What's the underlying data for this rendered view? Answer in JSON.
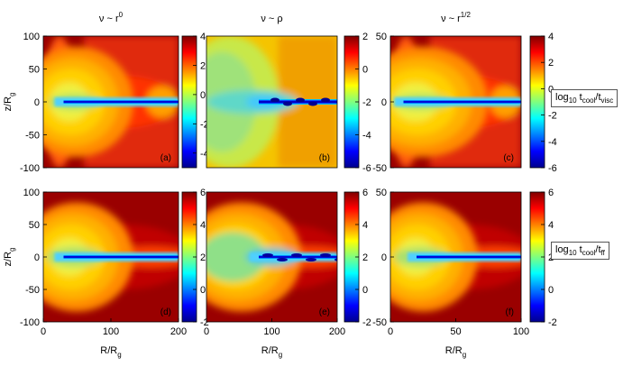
{
  "figure": {
    "legend_top_html": "log<sub>10</sub> t<sub>cool</sub>/t<sub>visc</sub>",
    "legend_bottom_html": "log<sub>10</sub> t<sub>cool</sub>/t<sub>ff</sub>",
    "legend_top_text": "log10 tcool/tvisc",
    "legend_bottom_text": "log10 tcool/tff"
  },
  "chart_data": [
    {
      "type": "heatmap",
      "panel": "(a)",
      "column_title": "ν ~ r",
      "column_title_sup": "0",
      "xlabel": "",
      "ylabel": "z/R",
      "ylabel_sub": "g",
      "xlim": [
        0,
        200
      ],
      "ylim": [
        -100,
        100
      ],
      "xticks": [],
      "yticks": [
        100,
        50,
        0,
        -50,
        -100
      ],
      "colorbar_range": [
        -5,
        4
      ],
      "colorbar_ticks": [
        4,
        2,
        0,
        -2,
        -4
      ],
      "variant": "top",
      "disk_extent": [
        30,
        200
      ],
      "lobe_radius": 100
    },
    {
      "type": "heatmap",
      "panel": "(b)",
      "column_title": "ν ~ ρ",
      "column_title_sup": "",
      "xlabel": "",
      "ylabel": "",
      "xlim": [
        0,
        200
      ],
      "ylim": [
        -100,
        100
      ],
      "xticks": [],
      "yticks": [],
      "colorbar_range": [
        -6,
        2
      ],
      "colorbar_ticks": [
        2,
        0,
        -2,
        -4,
        -6
      ],
      "variant": "viscrho",
      "disk_extent": [
        80,
        200
      ],
      "lobe_radius": 0
    },
    {
      "type": "heatmap",
      "panel": "(c)",
      "column_title": "ν ~ r",
      "column_title_sup": "1/2",
      "xlabel": "",
      "ylabel": "",
      "xlim": [
        0,
        100
      ],
      "ylim": [
        -50,
        50
      ],
      "xticks": [],
      "yticks": [
        50,
        0,
        -50
      ],
      "colorbar_range": [
        -6,
        4
      ],
      "colorbar_ticks": [
        4,
        2,
        0,
        -2,
        -4,
        -6
      ],
      "variant": "top",
      "disk_extent": [
        10,
        100
      ],
      "lobe_radius": 60
    },
    {
      "type": "heatmap",
      "panel": "(d)",
      "column_title": "",
      "column_title_sup": "",
      "xlabel": "R/R",
      "xlabel_sub": "g",
      "ylabel": "z/R",
      "ylabel_sub": "g",
      "xlim": [
        0,
        200
      ],
      "ylim": [
        -100,
        100
      ],
      "xticks": [
        0,
        100,
        200
      ],
      "yticks": [
        100,
        50,
        0,
        -50,
        -100
      ],
      "colorbar_range": [
        -2,
        6
      ],
      "colorbar_ticks": [
        6,
        4,
        2,
        0,
        -2
      ],
      "variant": "bottom",
      "disk_extent": [
        30,
        200
      ],
      "lobe_radius": 100
    },
    {
      "type": "heatmap",
      "panel": "(e)",
      "column_title": "",
      "column_title_sup": "",
      "xlabel": "R/R",
      "xlabel_sub": "g",
      "ylabel": "",
      "xlim": [
        0,
        200
      ],
      "ylim": [
        -100,
        100
      ],
      "xticks": [
        0,
        100,
        200
      ],
      "yticks": [],
      "colorbar_range": [
        -2,
        6
      ],
      "colorbar_ticks": [
        6,
        4,
        2,
        0,
        -2
      ],
      "variant": "ffrho",
      "disk_extent": [
        80,
        200
      ],
      "lobe_radius": 90
    },
    {
      "type": "heatmap",
      "panel": "(f)",
      "column_title": "",
      "column_title_sup": "",
      "xlabel": "R/R",
      "xlabel_sub": "g",
      "ylabel": "",
      "xlim": [
        0,
        100
      ],
      "ylim": [
        -50,
        50
      ],
      "xticks": [
        0,
        50,
        100
      ],
      "yticks": [
        50,
        0,
        -50
      ],
      "colorbar_range": [
        -2,
        6
      ],
      "colorbar_ticks": [
        6,
        4,
        2,
        0,
        -2
      ],
      "variant": "bottom",
      "disk_extent": [
        20,
        100
      ],
      "lobe_radius": 60
    }
  ]
}
